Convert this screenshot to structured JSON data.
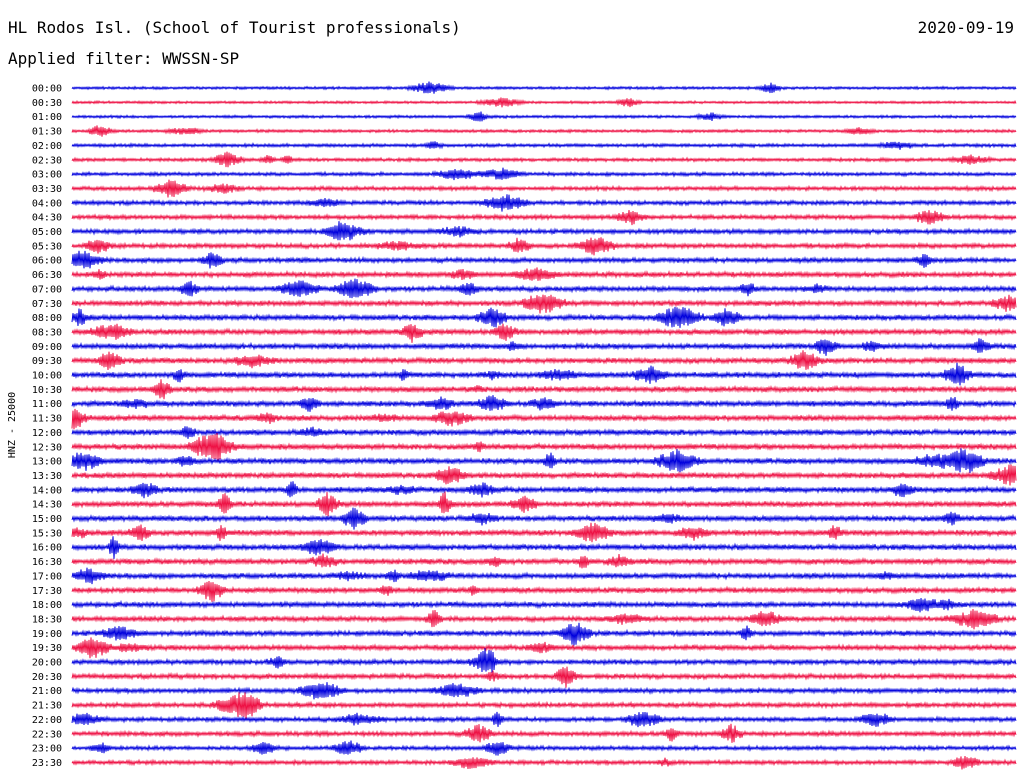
{
  "header": {
    "station": "HL Rodos Isl. (School of Tourist professionals)",
    "date": "2020-09-19",
    "filter": "Applied filter: WWSSN-SP"
  },
  "chart_data": {
    "type": "line",
    "ylabel": "HNZ - 25000",
    "trace_colors": [
      "#0000dd",
      "#ee1144"
    ],
    "rows": [
      {
        "label": "00:00",
        "activity": 0.35
      },
      {
        "label": "00:30",
        "activity": 0.3
      },
      {
        "label": "01:00",
        "activity": 0.35
      },
      {
        "label": "01:30",
        "activity": 0.4
      },
      {
        "label": "02:00",
        "activity": 0.5
      },
      {
        "label": "02:30",
        "activity": 0.5
      },
      {
        "label": "03:00",
        "activity": 0.55
      },
      {
        "label": "03:30",
        "activity": 0.65
      },
      {
        "label": "04:00",
        "activity": 0.7
      },
      {
        "label": "04:30",
        "activity": 0.75
      },
      {
        "label": "05:00",
        "activity": 0.8
      },
      {
        "label": "05:30",
        "activity": 0.8
      },
      {
        "label": "06:00",
        "activity": 0.85
      },
      {
        "label": "06:30",
        "activity": 0.9
      },
      {
        "label": "07:00",
        "activity": 0.9
      },
      {
        "label": "07:30",
        "activity": 0.9
      },
      {
        "label": "08:00",
        "activity": 0.95
      },
      {
        "label": "08:30",
        "activity": 0.95
      },
      {
        "label": "09:00",
        "activity": 0.95
      },
      {
        "label": "09:30",
        "activity": 0.95
      },
      {
        "label": "10:00",
        "activity": 1.0
      },
      {
        "label": "10:30",
        "activity": 1.0
      },
      {
        "label": "11:00",
        "activity": 1.0
      },
      {
        "label": "11:30",
        "activity": 1.0
      },
      {
        "label": "12:00",
        "activity": 1.0
      },
      {
        "label": "12:30",
        "activity": 1.0
      },
      {
        "label": "13:00",
        "activity": 1.0
      },
      {
        "label": "13:30",
        "activity": 1.0
      },
      {
        "label": "14:00",
        "activity": 1.0
      },
      {
        "label": "14:30",
        "activity": 1.0
      },
      {
        "label": "15:00",
        "activity": 1.0
      },
      {
        "label": "15:30",
        "activity": 1.0
      },
      {
        "label": "16:00",
        "activity": 1.0
      },
      {
        "label": "16:30",
        "activity": 1.0
      },
      {
        "label": "17:00",
        "activity": 0.95
      },
      {
        "label": "17:30",
        "activity": 0.95
      },
      {
        "label": "18:00",
        "activity": 0.95
      },
      {
        "label": "18:30",
        "activity": 0.9
      },
      {
        "label": "19:00",
        "activity": 0.9
      },
      {
        "label": "19:30",
        "activity": 0.9
      },
      {
        "label": "20:00",
        "activity": 0.85
      },
      {
        "label": "20:30",
        "activity": 0.85
      },
      {
        "label": "21:00",
        "activity": 0.8
      },
      {
        "label": "21:30",
        "activity": 0.8
      },
      {
        "label": "22:00",
        "activity": 0.75
      },
      {
        "label": "22:30",
        "activity": 0.8
      },
      {
        "label": "23:00",
        "activity": 0.65
      },
      {
        "label": "23:30",
        "activity": 0.7
      }
    ]
  }
}
